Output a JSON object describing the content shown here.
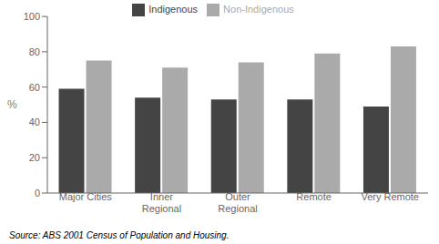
{
  "chart_data": {
    "type": "bar",
    "categories": [
      "Major Cities",
      "Inner\nRegional",
      "Outer\nRegional",
      "Remote",
      "Very Remote"
    ],
    "series": [
      {
        "name": "Indigenous",
        "color": "#444444",
        "values": [
          59,
          54,
          53,
          53,
          49
        ]
      },
      {
        "name": "Non-Indigenous",
        "color": "#aaaaaa",
        "values": [
          75,
          71,
          74,
          79,
          83
        ]
      }
    ],
    "y_label": "%",
    "ylim": [
      0,
      100
    ],
    "yticks": [
      0,
      20,
      40,
      60,
      80,
      100
    ],
    "grid": false,
    "legend": "top",
    "annotations": [
      "Source: ABS 2001 Census of Population and Housing."
    ]
  }
}
